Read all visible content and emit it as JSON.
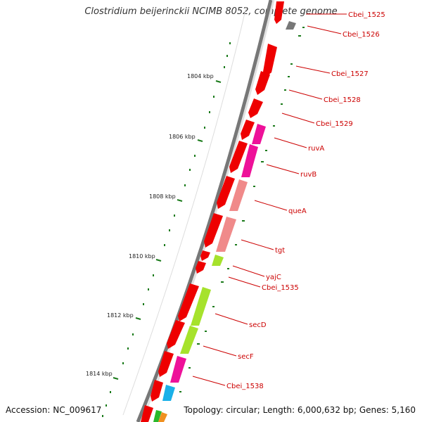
{
  "title": "Clostridium beijerinckii NCIMB 8052, complete genome",
  "footer": {
    "accession": "Accession: NC_009617",
    "topology": "Topology: circular; Length: 6,000,632 bp; Genes: 5,160"
  },
  "colors": {
    "forward_gene": "#ee0000",
    "pink_gene": "#ee1199",
    "salmon_gene": "#f08a8a",
    "lime_gene": "#a6e22c",
    "cyan_gene": "#1ab0e8",
    "gray_gene": "#777777",
    "tick": "#1a7a1a",
    "backbone": "#777777",
    "label": "#cc0000"
  },
  "kbp_ticks": [
    "1804 kbp",
    "1806 kbp",
    "1808 kbp",
    "1810 kbp",
    "1812 kbp",
    "1814 kbp"
  ],
  "gene_labels": [
    "Cbei_1525",
    "Cbei_1526",
    "Cbei_1527",
    "Cbei_1528",
    "Cbei_1529",
    "ruvA",
    "ruvB",
    "queA",
    "tgt",
    "yajC",
    "Cbei_1535",
    "secD",
    "secF",
    "Cbei_1538"
  ]
}
